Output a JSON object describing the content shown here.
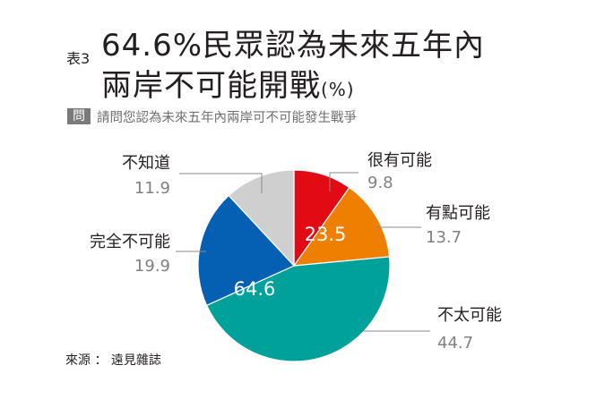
{
  "figure": {
    "table_no": "表3",
    "title_line1": "64.6%民眾認為未來五年內",
    "title_line2": "兩岸不可能開戰",
    "unit": "(%)",
    "question_badge": "問",
    "question": "請問您認為未來五年內兩岸可不可能發生戰爭",
    "source": "來源 ： 遠見雜誌"
  },
  "chart_data": {
    "type": "pie",
    "title": "64.6%民眾認為未來五年內兩岸不可能開戰",
    "unit": "%",
    "slices": [
      {
        "label": "很有可能",
        "value": 9.8,
        "color": "#e30b13"
      },
      {
        "label": "有點可能",
        "value": 13.7,
        "color": "#ee7f00"
      },
      {
        "label": "不太可能",
        "value": 44.7,
        "color": "#00a19a"
      },
      {
        "label": "完全不可能",
        "value": 19.9,
        "color": "#0560b4"
      },
      {
        "label": "不知道",
        "value": 11.9,
        "color": "#cfcfcf"
      }
    ],
    "group_labels": [
      {
        "text": "23.5",
        "slices": [
          "很有可能",
          "有點可能"
        ]
      },
      {
        "text": "64.6",
        "slices": [
          "不太可能",
          "完全不可能"
        ]
      }
    ]
  }
}
